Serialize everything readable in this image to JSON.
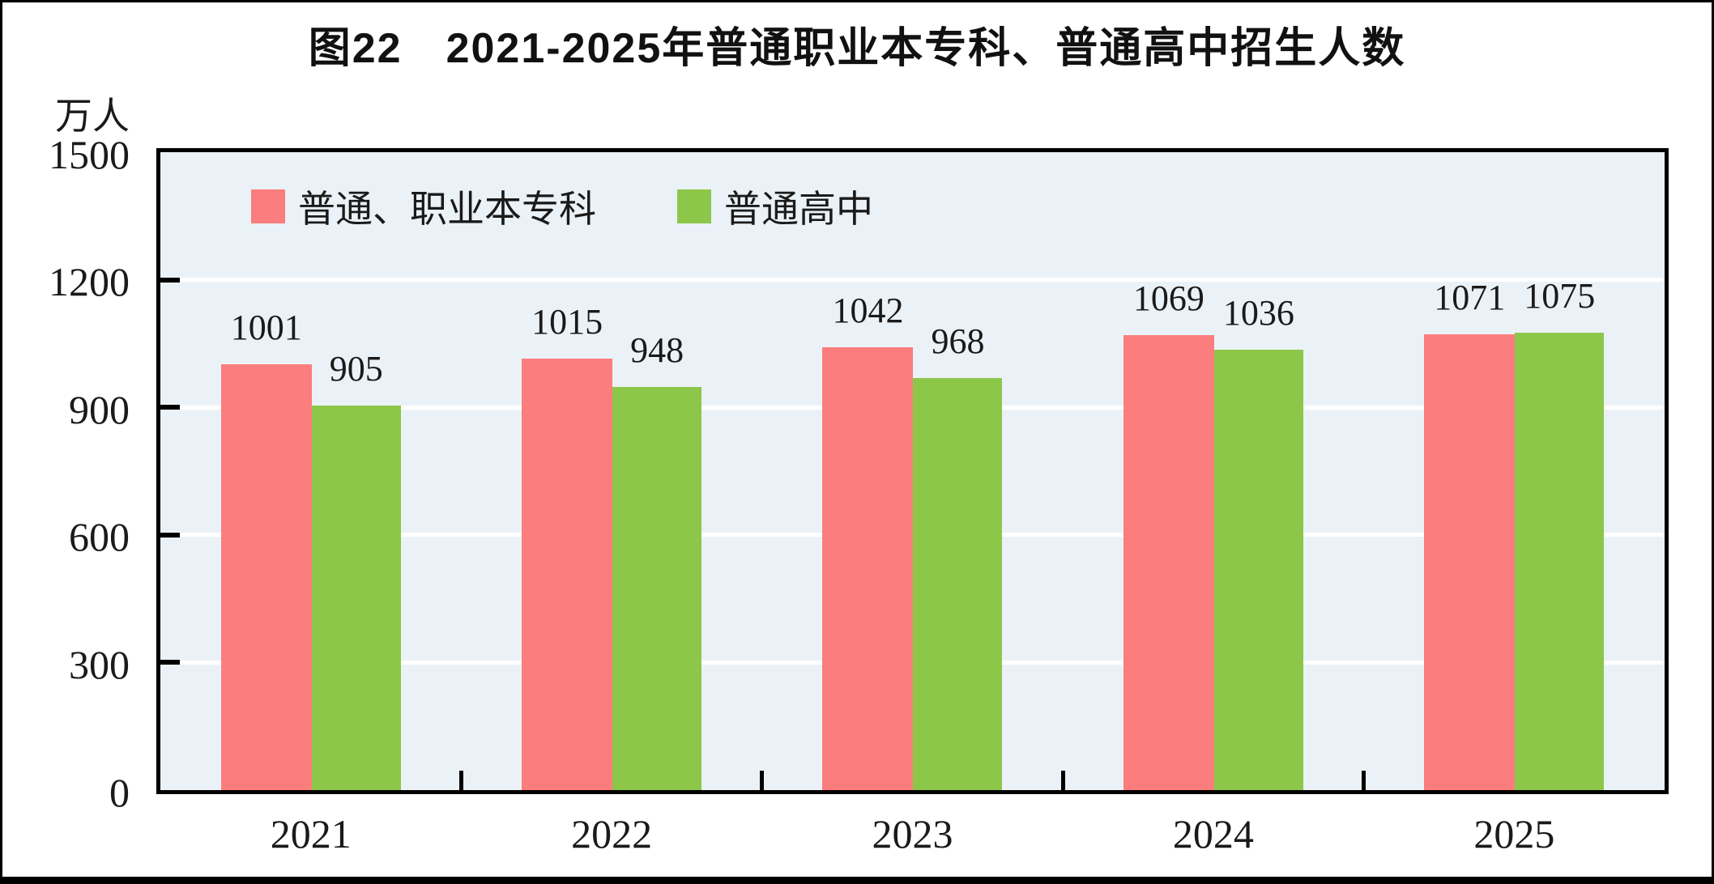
{
  "page": {
    "background": "#FFFFFF",
    "frame_border_color": "#000000"
  },
  "chart_data": {
    "type": "bar",
    "title": "图22　2021-2025年普通职业本专科、普通高中招生人数",
    "unit": "万人",
    "categories": [
      "2021",
      "2022",
      "2023",
      "2024",
      "2025"
    ],
    "series": [
      {
        "name": "普通、职业本专科",
        "color": "#FB7D7D",
        "values": [
          1001,
          1015,
          1042,
          1069,
          1071
        ]
      },
      {
        "name": "普通高中",
        "color": "#8CC74A",
        "values": [
          905,
          948,
          968,
          1036,
          1075
        ]
      }
    ],
    "ylim": [
      0,
      1500
    ],
    "yticks": [
      0,
      300,
      600,
      900,
      1200,
      1500
    ],
    "ylabel": "",
    "xlabel": "",
    "grid": true,
    "gridline_color": "#FFFFFF",
    "plot_background": "#EBF2F7",
    "axis_color": "#000000",
    "label_color": "#1A1A1A",
    "legend_position": "top-inside",
    "data_labels": true
  }
}
